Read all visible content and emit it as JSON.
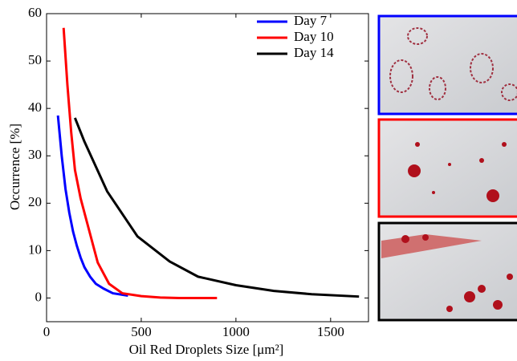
{
  "chart_data": {
    "type": "line",
    "xlabel": "Oil Red Droplets Size [μm²]",
    "ylabel": "Occurrence [%]",
    "xlim": [
      0,
      1700
    ],
    "ylim": [
      -5,
      60
    ],
    "xticks": [
      0,
      500,
      1000,
      1500
    ],
    "yticks": [
      0,
      10,
      20,
      30,
      40,
      50,
      60
    ],
    "grid": false,
    "legend": "upper-right",
    "series": [
      {
        "name": "Day 7",
        "color": "#0000ff",
        "x": [
          60,
          80,
          100,
          120,
          140,
          160,
          180,
          200,
          230,
          260,
          300,
          350,
          430
        ],
        "values": [
          38.5,
          30,
          23,
          18,
          14,
          11,
          8.5,
          6.5,
          4.5,
          3,
          2,
          1,
          0.5
        ]
      },
      {
        "name": "Day 10",
        "color": "#ff0000",
        "x": [
          90,
          110,
          130,
          150,
          180,
          220,
          270,
          330,
          400,
          500,
          600,
          700,
          900
        ],
        "values": [
          57,
          45,
          35,
          27,
          21,
          15,
          7.5,
          3,
          1,
          0.4,
          0.1,
          0,
          0
        ]
      },
      {
        "name": "Day 14",
        "color": "#000000",
        "x": [
          150,
          200,
          320,
          480,
          650,
          800,
          1000,
          1200,
          1400,
          1650
        ],
        "values": [
          38,
          33,
          22.5,
          13,
          7.7,
          4.5,
          2.7,
          1.5,
          0.8,
          0.3
        ]
      }
    ]
  }
}
